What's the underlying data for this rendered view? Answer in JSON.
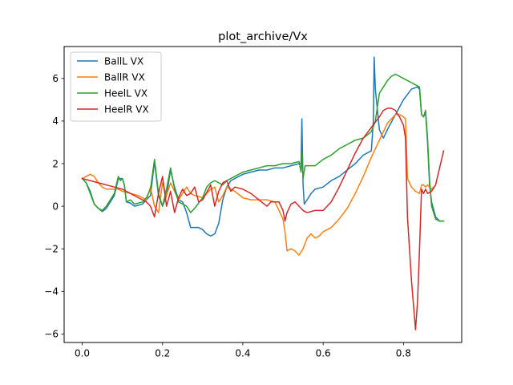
{
  "chart_data": {
    "type": "line",
    "title": "plot_archive/Vx",
    "xlabel": "",
    "ylabel": "",
    "xlim": [
      -0.045,
      0.945
    ],
    "ylim": [
      -6.4,
      7.5
    ],
    "xticks": [
      0.0,
      0.2,
      0.4,
      0.6,
      0.8
    ],
    "xtick_labels": [
      "0.0",
      "0.2",
      "0.4",
      "0.6",
      "0.8"
    ],
    "yticks": [
      -6,
      -4,
      -2,
      0,
      2,
      4,
      6
    ],
    "ytick_labels": [
      "−6",
      "−4",
      "−2",
      "0",
      "2",
      "4",
      "6"
    ],
    "grid": false,
    "legend_position": "top-left",
    "series": [
      {
        "name": "BallL VX",
        "color": "#1f77b4",
        "points": [
          [
            0.0,
            1.3
          ],
          [
            0.01,
            1.1
          ],
          [
            0.02,
            0.7
          ],
          [
            0.03,
            0.1
          ],
          [
            0.04,
            -0.1
          ],
          [
            0.05,
            -0.25
          ],
          [
            0.06,
            -0.1
          ],
          [
            0.07,
            0.2
          ],
          [
            0.08,
            0.5
          ],
          [
            0.09,
            1.3
          ],
          [
            0.1,
            1.3
          ],
          [
            0.105,
            1.0
          ],
          [
            0.11,
            0.2
          ],
          [
            0.12,
            0.15
          ],
          [
            0.13,
            0.0
          ],
          [
            0.15,
            0.1
          ],
          [
            0.16,
            0.3
          ],
          [
            0.17,
            0.5
          ],
          [
            0.18,
            2.1
          ],
          [
            0.19,
            0.5
          ],
          [
            0.2,
            0.0
          ],
          [
            0.21,
            0.5
          ],
          [
            0.22,
            1.7
          ],
          [
            0.23,
            0.9
          ],
          [
            0.24,
            0.3
          ],
          [
            0.25,
            0.2
          ],
          [
            0.26,
            -0.3
          ],
          [
            0.27,
            -1.0
          ],
          [
            0.28,
            -1.0
          ],
          [
            0.29,
            -1.0
          ],
          [
            0.3,
            -1.1
          ],
          [
            0.31,
            -1.3
          ],
          [
            0.32,
            -1.4
          ],
          [
            0.33,
            -1.3
          ],
          [
            0.34,
            -0.8
          ],
          [
            0.35,
            0.3
          ],
          [
            0.36,
            0.9
          ],
          [
            0.37,
            1.2
          ],
          [
            0.38,
            1.3
          ],
          [
            0.4,
            1.5
          ],
          [
            0.42,
            1.6
          ],
          [
            0.44,
            1.7
          ],
          [
            0.46,
            1.7
          ],
          [
            0.48,
            1.8
          ],
          [
            0.5,
            1.8
          ],
          [
            0.52,
            1.9
          ],
          [
            0.54,
            2.0
          ],
          [
            0.545,
            2.0
          ],
          [
            0.547,
            4.1
          ],
          [
            0.55,
            1.0
          ],
          [
            0.553,
            0.1
          ],
          [
            0.56,
            0.3
          ],
          [
            0.57,
            0.6
          ],
          [
            0.58,
            0.8
          ],
          [
            0.6,
            0.9
          ],
          [
            0.62,
            1.2
          ],
          [
            0.64,
            1.4
          ],
          [
            0.66,
            1.7
          ],
          [
            0.68,
            2.0
          ],
          [
            0.7,
            2.4
          ],
          [
            0.72,
            2.6
          ],
          [
            0.725,
            4.0
          ],
          [
            0.727,
            7.0
          ],
          [
            0.73,
            5.5
          ],
          [
            0.74,
            3.6
          ],
          [
            0.75,
            3.2
          ],
          [
            0.76,
            3.6
          ],
          [
            0.78,
            4.3
          ],
          [
            0.8,
            5.0
          ],
          [
            0.82,
            5.5
          ],
          [
            0.835,
            5.6
          ],
          [
            0.84,
            5.5
          ],
          [
            0.845,
            4.3
          ],
          [
            0.85,
            4.2
          ],
          [
            0.855,
            4.4
          ],
          [
            0.86,
            3.0
          ],
          [
            0.865,
            1.0
          ],
          [
            0.87,
            0.2
          ],
          [
            0.88,
            -0.5
          ],
          [
            0.89,
            -0.7
          ],
          [
            0.9,
            -0.7
          ]
        ]
      },
      {
        "name": "BallR VX",
        "color": "#ff7f0e",
        "points": [
          [
            0.0,
            1.3
          ],
          [
            0.01,
            1.4
          ],
          [
            0.02,
            1.5
          ],
          [
            0.03,
            1.4
          ],
          [
            0.04,
            1.1
          ],
          [
            0.05,
            0.9
          ],
          [
            0.06,
            0.8
          ],
          [
            0.07,
            0.8
          ],
          [
            0.08,
            0.8
          ],
          [
            0.09,
            0.8
          ],
          [
            0.1,
            0.7
          ],
          [
            0.12,
            0.6
          ],
          [
            0.14,
            0.5
          ],
          [
            0.16,
            0.3
          ],
          [
            0.17,
            0.9
          ],
          [
            0.18,
            0.0
          ],
          [
            0.19,
            -0.3
          ],
          [
            0.2,
            1.1
          ],
          [
            0.21,
            0.5
          ],
          [
            0.22,
            1.1
          ],
          [
            0.23,
            0.7
          ],
          [
            0.24,
            0.3
          ],
          [
            0.25,
            0.6
          ],
          [
            0.26,
            0.9
          ],
          [
            0.27,
            0.6
          ],
          [
            0.28,
            0.5
          ],
          [
            0.3,
            0.4
          ],
          [
            0.32,
            0.8
          ],
          [
            0.33,
            0.9
          ],
          [
            0.34,
            0.2
          ],
          [
            0.35,
            0.5
          ],
          [
            0.36,
            0.9
          ],
          [
            0.38,
            0.7
          ],
          [
            0.4,
            0.4
          ],
          [
            0.42,
            0.3
          ],
          [
            0.44,
            0.3
          ],
          [
            0.46,
            0.3
          ],
          [
            0.48,
            0.2
          ],
          [
            0.49,
            -0.2
          ],
          [
            0.5,
            -0.6
          ],
          [
            0.505,
            -1.2
          ],
          [
            0.51,
            -2.1
          ],
          [
            0.52,
            -2.0
          ],
          [
            0.53,
            -2.1
          ],
          [
            0.54,
            -2.3
          ],
          [
            0.55,
            -2.0
          ],
          [
            0.56,
            -1.5
          ],
          [
            0.57,
            -1.3
          ],
          [
            0.58,
            -1.5
          ],
          [
            0.59,
            -1.4
          ],
          [
            0.6,
            -1.2
          ],
          [
            0.62,
            -1.0
          ],
          [
            0.64,
            -0.6
          ],
          [
            0.66,
            -0.1
          ],
          [
            0.68,
            0.6
          ],
          [
            0.7,
            1.4
          ],
          [
            0.72,
            2.3
          ],
          [
            0.74,
            3.1
          ],
          [
            0.76,
            3.9
          ],
          [
            0.78,
            4.3
          ],
          [
            0.79,
            4.3
          ],
          [
            0.8,
            4.2
          ],
          [
            0.805,
            4.1
          ],
          [
            0.81,
            1.3
          ],
          [
            0.82,
            0.9
          ],
          [
            0.83,
            0.7
          ],
          [
            0.84,
            0.6
          ],
          [
            0.845,
            1.0
          ],
          [
            0.85,
            1.0
          ],
          [
            0.855,
            0.9
          ],
          [
            0.86,
            1.0
          ],
          [
            0.87,
            0.8
          ],
          [
            0.875,
            0.9
          ]
        ]
      },
      {
        "name": "HeelL VX",
        "color": "#2ca02c",
        "points": [
          [
            0.0,
            1.3
          ],
          [
            0.01,
            1.1
          ],
          [
            0.02,
            0.6
          ],
          [
            0.03,
            0.1
          ],
          [
            0.04,
            -0.1
          ],
          [
            0.05,
            -0.2
          ],
          [
            0.06,
            0.0
          ],
          [
            0.07,
            0.3
          ],
          [
            0.08,
            0.6
          ],
          [
            0.09,
            1.4
          ],
          [
            0.095,
            1.2
          ],
          [
            0.1,
            1.3
          ],
          [
            0.105,
            1.0
          ],
          [
            0.11,
            0.2
          ],
          [
            0.12,
            0.3
          ],
          [
            0.13,
            0.1
          ],
          [
            0.15,
            0.2
          ],
          [
            0.16,
            0.4
          ],
          [
            0.17,
            0.8
          ],
          [
            0.18,
            2.2
          ],
          [
            0.19,
            0.6
          ],
          [
            0.2,
            0.0
          ],
          [
            0.21,
            0.8
          ],
          [
            0.22,
            1.8
          ],
          [
            0.23,
            0.8
          ],
          [
            0.24,
            0.2
          ],
          [
            0.25,
            0.1
          ],
          [
            0.26,
            0.0
          ],
          [
            0.27,
            -0.3
          ],
          [
            0.28,
            -0.1
          ],
          [
            0.3,
            0.4
          ],
          [
            0.31,
            0.9
          ],
          [
            0.32,
            1.1
          ],
          [
            0.33,
            1.2
          ],
          [
            0.34,
            1.1
          ],
          [
            0.35,
            1.0
          ],
          [
            0.36,
            1.2
          ],
          [
            0.38,
            1.4
          ],
          [
            0.4,
            1.6
          ],
          [
            0.42,
            1.7
          ],
          [
            0.44,
            1.8
          ],
          [
            0.46,
            1.9
          ],
          [
            0.48,
            1.9
          ],
          [
            0.5,
            2.0
          ],
          [
            0.52,
            2.0
          ],
          [
            0.54,
            2.1
          ],
          [
            0.545,
            1.6
          ],
          [
            0.547,
            2.5
          ],
          [
            0.55,
            1.3
          ],
          [
            0.555,
            1.9
          ],
          [
            0.56,
            1.9
          ],
          [
            0.58,
            1.9
          ],
          [
            0.6,
            2.2
          ],
          [
            0.62,
            2.4
          ],
          [
            0.64,
            2.7
          ],
          [
            0.66,
            2.9
          ],
          [
            0.68,
            3.1
          ],
          [
            0.7,
            3.2
          ],
          [
            0.72,
            3.5
          ],
          [
            0.73,
            4.0
          ],
          [
            0.74,
            5.3
          ],
          [
            0.75,
            5.6
          ],
          [
            0.76,
            5.9
          ],
          [
            0.77,
            6.1
          ],
          [
            0.78,
            6.2
          ],
          [
            0.8,
            6.0
          ],
          [
            0.82,
            5.8
          ],
          [
            0.84,
            5.6
          ],
          [
            0.845,
            4.3
          ],
          [
            0.85,
            4.2
          ],
          [
            0.855,
            4.5
          ],
          [
            0.86,
            3.2
          ],
          [
            0.865,
            1.2
          ],
          [
            0.87,
            0.0
          ],
          [
            0.88,
            -0.6
          ],
          [
            0.89,
            -0.7
          ],
          [
            0.9,
            -0.7
          ]
        ]
      },
      {
        "name": "HeelR VX",
        "color": "#d62728",
        "points": [
          [
            0.0,
            1.3
          ],
          [
            0.02,
            1.2
          ],
          [
            0.04,
            1.1
          ],
          [
            0.06,
            1.0
          ],
          [
            0.08,
            0.9
          ],
          [
            0.1,
            0.8
          ],
          [
            0.12,
            0.6
          ],
          [
            0.14,
            0.4
          ],
          [
            0.16,
            0.2
          ],
          [
            0.17,
            0.0
          ],
          [
            0.18,
            -0.5
          ],
          [
            0.19,
            0.6
          ],
          [
            0.2,
            1.4
          ],
          [
            0.21,
            0.0
          ],
          [
            0.22,
            0.7
          ],
          [
            0.23,
            -0.3
          ],
          [
            0.24,
            0.4
          ],
          [
            0.25,
            0.8
          ],
          [
            0.26,
            0.5
          ],
          [
            0.27,
            0.6
          ],
          [
            0.28,
            0.9
          ],
          [
            0.29,
            0.2
          ],
          [
            0.3,
            0.3
          ],
          [
            0.32,
            1.0
          ],
          [
            0.33,
            0.0
          ],
          [
            0.34,
            0.7
          ],
          [
            0.35,
            1.1
          ],
          [
            0.36,
            1.2
          ],
          [
            0.37,
            0.7
          ],
          [
            0.38,
            0.9
          ],
          [
            0.4,
            0.8
          ],
          [
            0.42,
            0.6
          ],
          [
            0.44,
            0.3
          ],
          [
            0.46,
            0.0
          ],
          [
            0.47,
            0.2
          ],
          [
            0.49,
            0.2
          ],
          [
            0.5,
            -0.2
          ],
          [
            0.505,
            -0.7
          ],
          [
            0.51,
            -0.3
          ],
          [
            0.52,
            0.1
          ],
          [
            0.53,
            0.2
          ],
          [
            0.54,
            0.0
          ],
          [
            0.55,
            -0.2
          ],
          [
            0.56,
            -0.3
          ],
          [
            0.58,
            -0.2
          ],
          [
            0.6,
            -0.2
          ],
          [
            0.62,
            0.2
          ],
          [
            0.64,
            0.9
          ],
          [
            0.66,
            1.7
          ],
          [
            0.68,
            2.5
          ],
          [
            0.7,
            3.2
          ],
          [
            0.72,
            3.7
          ],
          [
            0.74,
            4.2
          ],
          [
            0.75,
            4.5
          ],
          [
            0.76,
            4.6
          ],
          [
            0.77,
            4.6
          ],
          [
            0.78,
            4.5
          ],
          [
            0.79,
            4.2
          ],
          [
            0.8,
            3.8
          ],
          [
            0.805,
            3.2
          ],
          [
            0.81,
            -0.5
          ],
          [
            0.82,
            -3.5
          ],
          [
            0.83,
            -5.8
          ],
          [
            0.835,
            -4.5
          ],
          [
            0.84,
            -2.0
          ],
          [
            0.845,
            0.8
          ],
          [
            0.85,
            0.6
          ],
          [
            0.855,
            0.8
          ],
          [
            0.86,
            0.6
          ],
          [
            0.87,
            0.7
          ],
          [
            0.88,
            1.0
          ],
          [
            0.89,
            1.8
          ],
          [
            0.9,
            2.6
          ]
        ]
      }
    ]
  }
}
